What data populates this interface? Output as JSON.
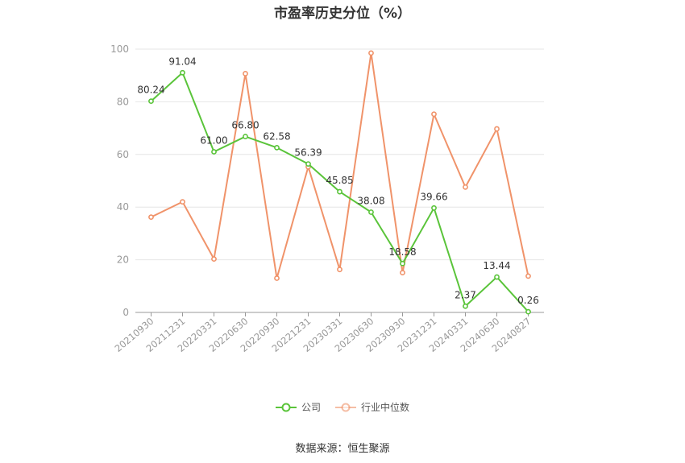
{
  "title": "市盈率历史分位（%）",
  "source": "数据来源：恒生聚源",
  "legend": {
    "company": "公司",
    "industry": "行业中位数"
  },
  "chart_data": {
    "type": "line",
    "title": "市盈率历史分位（%）",
    "xlabel": "",
    "ylabel": "",
    "ylim": [
      0,
      100
    ],
    "y_ticks": [
      0,
      20,
      40,
      60,
      80,
      100
    ],
    "grid": true,
    "legend_position": "bottom",
    "categories": [
      "20210930",
      "20211231",
      "20220331",
      "20220630",
      "20220930",
      "20221231",
      "20230331",
      "20230630",
      "20230930",
      "20231231",
      "20240331",
      "20240630",
      "20240827"
    ],
    "series": [
      {
        "name": "公司",
        "color": "#5ac43a",
        "values": [
          80.24,
          91.04,
          61.0,
          66.8,
          62.58,
          56.39,
          45.85,
          38.08,
          18.58,
          39.66,
          2.37,
          13.44,
          0.26
        ],
        "labels": [
          "80.24",
          "91.04",
          "61.00",
          "66.80",
          "62.58",
          "56.39",
          "45.85",
          "38.08",
          "18.58",
          "39.66",
          "2.37",
          "13.44",
          "0.26"
        ]
      },
      {
        "name": "行业中位数",
        "color": "#f0936a",
        "values": [
          36.2,
          42.0,
          20.3,
          90.7,
          13.0,
          55.3,
          16.3,
          98.5,
          15.1,
          75.3,
          47.6,
          69.7,
          13.8
        ]
      }
    ]
  }
}
